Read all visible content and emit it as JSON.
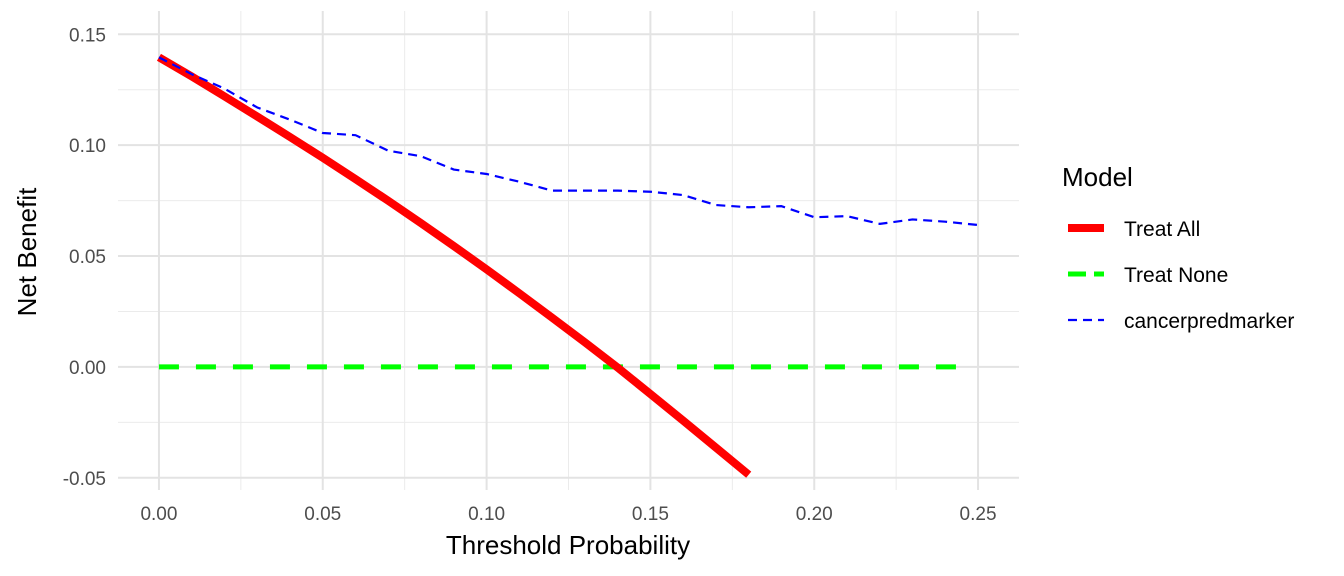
{
  "chart_data": {
    "type": "line",
    "xlabel": "Threshold Probability",
    "ylabel": "Net Benefit",
    "xlim": [
      -0.0125,
      0.2625
    ],
    "ylim": [
      -0.0555,
      0.1605
    ],
    "x_ticks": [
      0.0,
      0.05,
      0.1,
      0.15,
      0.2,
      0.25
    ],
    "x_tick_labels": [
      "0.00",
      "0.05",
      "0.10",
      "0.15",
      "0.20",
      "0.25"
    ],
    "y_ticks": [
      -0.05,
      0.0,
      0.05,
      0.1,
      0.15
    ],
    "y_tick_labels": [
      "-0.05",
      "0.00",
      "0.05",
      "0.10",
      "0.15"
    ],
    "grid": true,
    "legend": {
      "title": "Model",
      "position": "right",
      "entries": [
        "Treat All",
        "Treat None",
        "cancerpredmarker"
      ]
    },
    "series": [
      {
        "name": "Treat All",
        "color": "#ff0000",
        "style": "solid",
        "x": [
          0.0,
          0.01,
          0.02,
          0.03,
          0.04,
          0.05,
          0.06,
          0.07,
          0.08,
          0.09,
          0.1,
          0.11,
          0.12,
          0.13,
          0.14,
          0.15,
          0.16,
          0.17,
          0.18
        ],
        "y": [
          0.1396,
          0.131,
          0.122,
          0.1129,
          0.1037,
          0.0943,
          0.0847,
          0.0749,
          0.0648,
          0.0545,
          0.044,
          0.0332,
          0.0222,
          0.0111,
          -0.0003,
          -0.0122,
          -0.0242,
          -0.0364,
          -0.0486
        ]
      },
      {
        "name": "Treat None",
        "color": "#00ff00",
        "style": "dashed",
        "x": [
          0.0,
          0.245
        ],
        "y": [
          0.0,
          0.0
        ]
      },
      {
        "name": "cancerpredmarker",
        "color": "#0000ff",
        "style": "dashed",
        "x": [
          0.0,
          0.01,
          0.02,
          0.03,
          0.04,
          0.05,
          0.06,
          0.07,
          0.08,
          0.09,
          0.1,
          0.11,
          0.12,
          0.13,
          0.14,
          0.15,
          0.16,
          0.17,
          0.18,
          0.19,
          0.2,
          0.21,
          0.22,
          0.23,
          0.24,
          0.25
        ],
        "y": [
          0.1396,
          0.132,
          0.1255,
          0.117,
          0.1115,
          0.1055,
          0.1045,
          0.0975,
          0.095,
          0.089,
          0.087,
          0.0835,
          0.0795,
          0.0795,
          0.0795,
          0.079,
          0.0775,
          0.073,
          0.072,
          0.0725,
          0.0675,
          0.068,
          0.0645,
          0.0665,
          0.0655,
          0.064
        ]
      }
    ]
  }
}
